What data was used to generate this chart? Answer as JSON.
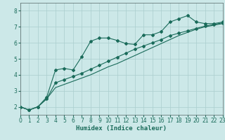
{
  "xlabel": "Humidex (Indice chaleur)",
  "xlim": [
    0,
    23
  ],
  "ylim": [
    1.5,
    8.5
  ],
  "yticks": [
    2,
    3,
    4,
    5,
    6,
    7,
    8
  ],
  "xticks": [
    0,
    1,
    2,
    3,
    4,
    5,
    6,
    7,
    8,
    9,
    10,
    11,
    12,
    13,
    14,
    15,
    16,
    17,
    18,
    19,
    20,
    21,
    22,
    23
  ],
  "bg_color": "#cce8e8",
  "grid_color": "#aacece",
  "line_color": "#1a6b5a",
  "line1_y": [
    2.0,
    1.8,
    2.0,
    2.6,
    4.3,
    4.4,
    4.3,
    5.15,
    6.1,
    6.3,
    6.3,
    6.15,
    5.95,
    5.9,
    6.5,
    6.5,
    6.7,
    7.3,
    7.5,
    7.7,
    7.3,
    7.2,
    7.2,
    7.3
  ],
  "line2_y": [
    2.0,
    1.8,
    2.0,
    2.5,
    3.5,
    3.7,
    3.9,
    4.1,
    4.35,
    4.6,
    4.85,
    5.1,
    5.35,
    5.6,
    5.8,
    6.0,
    6.2,
    6.45,
    6.6,
    6.75,
    6.9,
    7.05,
    7.15,
    7.25
  ],
  "line3_y": [
    2.0,
    1.8,
    2.0,
    2.5,
    3.2,
    3.4,
    3.6,
    3.8,
    4.0,
    4.25,
    4.5,
    4.7,
    4.95,
    5.2,
    5.45,
    5.7,
    5.95,
    6.2,
    6.45,
    6.65,
    6.85,
    7.0,
    7.1,
    7.2
  ],
  "xlabel_fontsize": 6.5,
  "tick_fontsize": 5.5,
  "marker_size": 2.0,
  "line_width": 0.8
}
